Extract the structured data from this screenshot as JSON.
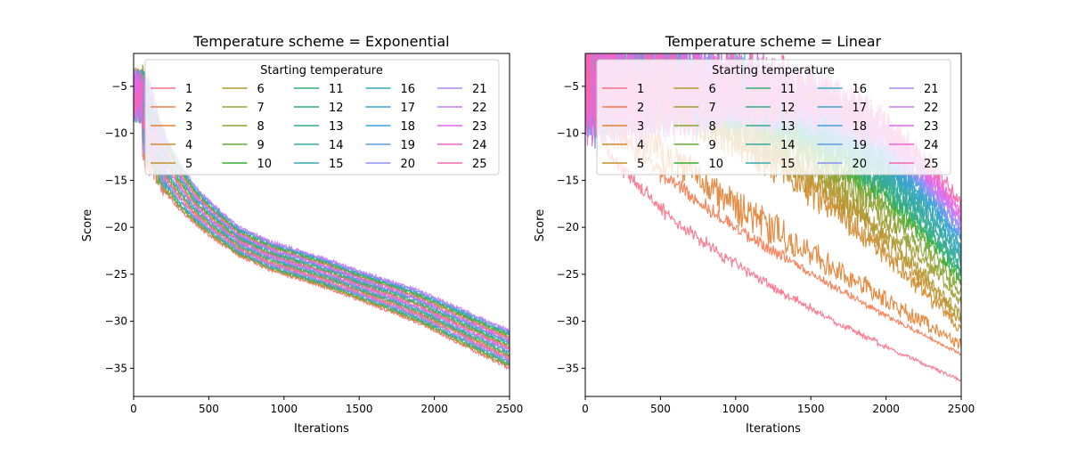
{
  "chart_data": [
    {
      "type": "line",
      "title": "Temperature scheme = Exponential",
      "xlabel": "Iterations",
      "ylabel": "Score",
      "xlim": [
        0,
        2500
      ],
      "ylim": [
        -38,
        -1.5
      ],
      "xticks": [
        0,
        500,
        1000,
        1500,
        2000,
        2500
      ],
      "yticks": [
        -35,
        -30,
        -25,
        -20,
        -15,
        -10,
        -5
      ],
      "xtick_labels": [
        "0",
        "500",
        "1000",
        "1500",
        "2000",
        "2500"
      ],
      "ytick_labels": [
        "−35",
        "−30",
        "−25",
        "−20",
        "−15",
        "−10",
        "−5"
      ],
      "legend": {
        "title": "Starting temperature",
        "placement": "upper-right",
        "columns": 5,
        "entries": [
          "1",
          "2",
          "3",
          "4",
          "5",
          "6",
          "7",
          "8",
          "9",
          "10",
          "11",
          "12",
          "13",
          "14",
          "15",
          "16",
          "17",
          "18",
          "19",
          "20",
          "21",
          "22",
          "23",
          "24",
          "25"
        ]
      },
      "series_colors": [
        "#f77189",
        "#f57a4f",
        "#e28133",
        "#d0892e",
        "#c1902f",
        "#b0972e",
        "#9f9d31",
        "#89a332",
        "#66a932",
        "#36ae33",
        "#33ad70",
        "#33ac88",
        "#34ab96",
        "#35aaa1",
        "#36a9ac",
        "#37a7b9",
        "#39a5c8",
        "#3da1dc",
        "#5d99e3",
        "#8891f2",
        "#a98af5",
        "#c878f4",
        "#e167e8",
        "#f264d0",
        "#f568ac"
      ],
      "x": [
        0,
        100,
        200,
        300,
        400,
        500,
        700,
        900,
        1100,
        1300,
        1500,
        1700,
        1900,
        2100,
        2300,
        2500
      ],
      "series_summary": {
        "mean": [
          -5.0,
          -9.0,
          -13.0,
          -15.5,
          -17.5,
          -19.0,
          -21.5,
          -23.0,
          -24.0,
          -25.0,
          -26.2,
          -27.3,
          -28.5,
          -30.0,
          -31.5,
          -33.0
        ],
        "spread": [
          4.0,
          3.5,
          3.0,
          2.5,
          2.0,
          1.8,
          1.5,
          1.5,
          1.5,
          1.5,
          1.5,
          1.6,
          1.7,
          1.8,
          1.9,
          2.0
        ]
      }
    },
    {
      "type": "line",
      "title": "Temperature scheme = Linear",
      "xlabel": "Iterations",
      "ylabel": "Score",
      "xlim": [
        0,
        2500
      ],
      "ylim": [
        -38,
        -1.5
      ],
      "xticks": [
        0,
        500,
        1000,
        1500,
        2000,
        2500
      ],
      "yticks": [
        -35,
        -30,
        -25,
        -20,
        -15,
        -10,
        -5
      ],
      "xtick_labels": [
        "0",
        "500",
        "1000",
        "1500",
        "2000",
        "2500"
      ],
      "ytick_labels": [
        "−35",
        "−30",
        "−25",
        "−20",
        "−15",
        "−10",
        "−5"
      ],
      "legend": {
        "title": "Starting temperature",
        "placement": "upper-right",
        "columns": 5,
        "entries": [
          "1",
          "2",
          "3",
          "4",
          "5",
          "6",
          "7",
          "8",
          "9",
          "10",
          "11",
          "12",
          "13",
          "14",
          "15",
          "16",
          "17",
          "18",
          "19",
          "20",
          "21",
          "22",
          "23",
          "24",
          "25"
        ]
      },
      "series_colors": [
        "#f77189",
        "#f57a4f",
        "#e28133",
        "#d0892e",
        "#c1902f",
        "#b0972e",
        "#9f9d31",
        "#89a332",
        "#66a932",
        "#36ae33",
        "#33ad70",
        "#33ac88",
        "#34ab96",
        "#35aaa1",
        "#36a9ac",
        "#37a7b9",
        "#39a5c8",
        "#3da1dc",
        "#5d99e3",
        "#8891f2",
        "#a98af5",
        "#c878f4",
        "#e167e8",
        "#f264d0",
        "#f568ac"
      ],
      "x": [
        0,
        100,
        200,
        300,
        400,
        500,
        700,
        900,
        1100,
        1300,
        1500,
        1700,
        1900,
        2100,
        2300,
        2500
      ],
      "series_endpoints": [
        -36.3,
        -33.5,
        -32.5,
        -31.0,
        -30.0,
        -29.5,
        -28.0,
        -27.0,
        -26.0,
        -25.5,
        -25.0,
        -24.5,
        -24.0,
        -23.5,
        -23.0,
        -22.5,
        -22.0,
        -21.5,
        -21.0,
        -20.5,
        -20.0,
        -19.5,
        -19.0,
        -18.5,
        -17.5
      ]
    }
  ]
}
